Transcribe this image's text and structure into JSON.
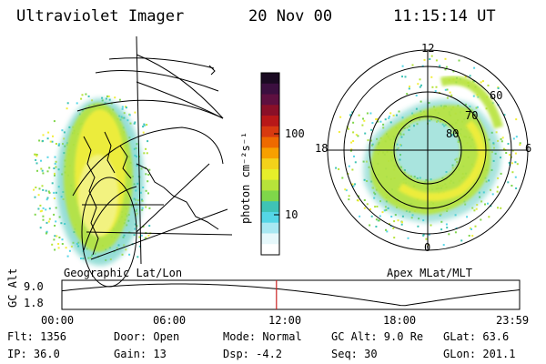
{
  "header": {
    "title": "Ultraviolet Imager",
    "date": "20 Nov 00",
    "time": "11:15:14 UT"
  },
  "colorbar": {
    "unit_label": "photon cm⁻²s⁻¹",
    "ticks": [
      {
        "label": "100",
        "value": 100
      },
      {
        "label": "10",
        "value": 10
      }
    ]
  },
  "left_panel": {
    "caption": "Geographic Lat/Lon"
  },
  "right_panel": {
    "caption": "Apex MLat/MLT",
    "mlt_labels": [
      "12",
      "18",
      "6",
      "0"
    ],
    "lat_labels": [
      "60",
      "70",
      "80"
    ]
  },
  "timeline": {
    "axis_label": "GC Alt",
    "y_ticks": [
      "9.0",
      "1.8"
    ],
    "x_ticks": [
      "00:00",
      "06:00",
      "12:00",
      "18:00",
      "23:59"
    ],
    "current_time_hours": 11.25,
    "marker_color": "#cc2222"
  },
  "status": {
    "flt": "Flt:  1356",
    "ip": "IP:  36.0",
    "door": "Door:  Open",
    "gain": "Gain:  13",
    "mode": "Mode:  Normal",
    "dsp": "Dsp:     -4.2",
    "gc_alt": "GC Alt:  9.0 Re",
    "seq": "Seq:  30",
    "glat": "GLat:   63.6",
    "glon": "GLon:  201.1"
  }
}
